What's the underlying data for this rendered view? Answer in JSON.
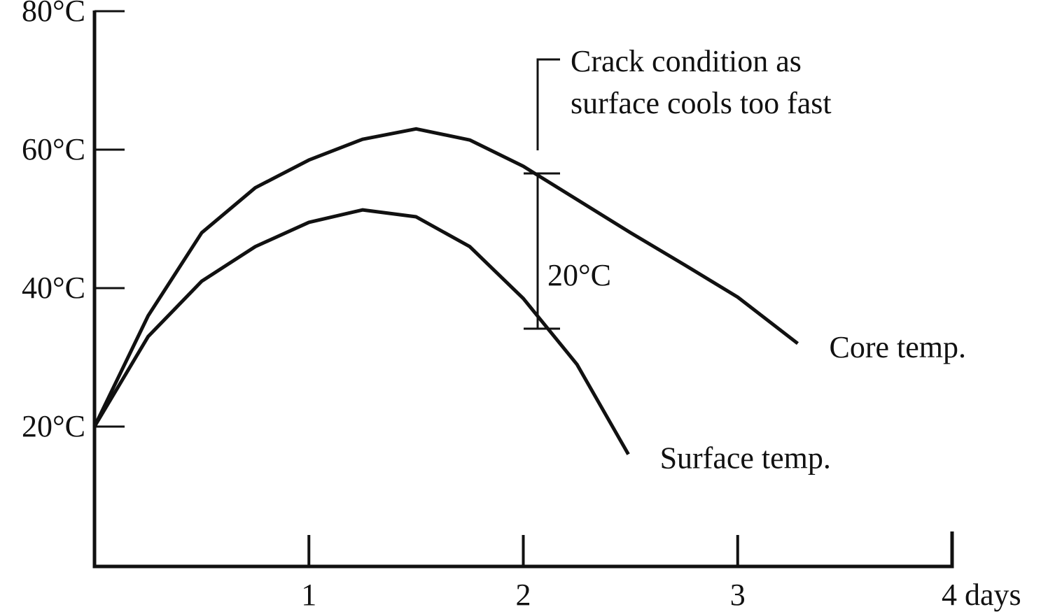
{
  "chart_data": {
    "type": "line",
    "xlim": [
      0,
      4
    ],
    "xticks": [
      1,
      2,
      3,
      {
        "value": 4,
        "label": "4 days"
      }
    ],
    "ylim": [
      0,
      80
    ],
    "yticks": [
      {
        "value": 20,
        "label": "20°C"
      },
      {
        "value": 40,
        "label": "40°C"
      },
      {
        "value": 60,
        "label": "60°C"
      },
      {
        "value": 80,
        "label": "80°C"
      }
    ],
    "series": [
      {
        "name": "Core temp.",
        "color": "#111111",
        "x": [
          0,
          0.25,
          0.5,
          0.75,
          1,
          1.25,
          1.5,
          1.75,
          2,
          2.25,
          2.5,
          2.75,
          3,
          3.28
        ],
        "values": [
          20,
          36,
          48,
          54.5,
          58.5,
          61.5,
          63,
          61.4,
          57.6,
          52.8,
          48,
          43.4,
          38.7,
          32
        ]
      },
      {
        "name": "Surface temp.",
        "color": "#111111",
        "x": [
          0,
          0.25,
          0.5,
          0.75,
          1,
          1.25,
          1.5,
          1.75,
          2,
          2.25,
          2.49
        ],
        "values": [
          20,
          33,
          41,
          46,
          49.5,
          51.3,
          50.3,
          46,
          38.5,
          29,
          16
        ]
      }
    ],
    "annotations": [
      "Crack condition as",
      "surface cools too fast",
      "20°C"
    ]
  }
}
